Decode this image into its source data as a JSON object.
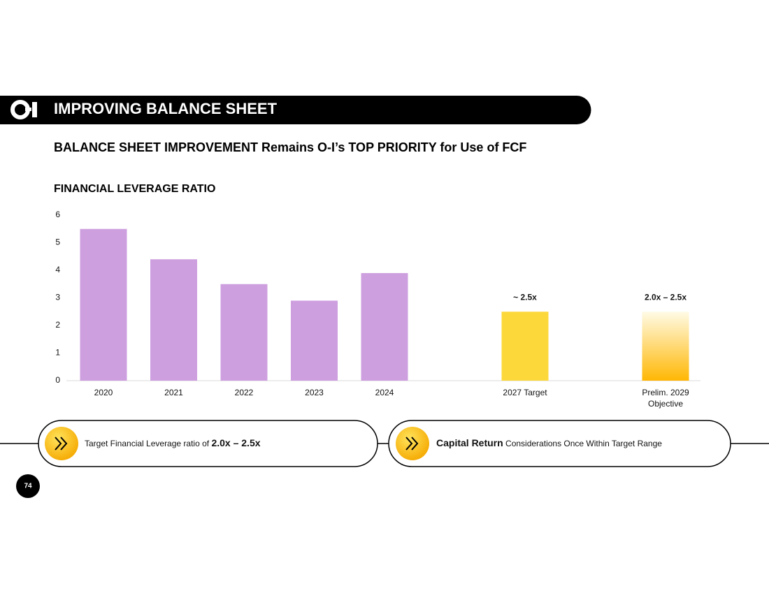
{
  "header": {
    "title": "IMPROVING BALANCE SHEET"
  },
  "subtitle": "BALANCE SHEET IMPROVEMENT Remains O-I’s TOP PRIORITY for Use of FCF",
  "chart_data": {
    "type": "bar",
    "title": "FINANCIAL LEVERAGE RATIO",
    "categories": [
      "2020",
      "2021",
      "2022",
      "2023",
      "2024",
      "2027 Target",
      "Prelim. 2029\nObjective"
    ],
    "values": [
      5.5,
      4.4,
      3.5,
      2.9,
      3.9,
      2.5,
      2.5
    ],
    "value_labels": [
      null,
      null,
      null,
      null,
      null,
      "~ 2.5x",
      "2.0x – 2.5x"
    ],
    "colors": [
      "#ce9fdf",
      "#ce9fdf",
      "#ce9fdf",
      "#ce9fdf",
      "#ce9fdf",
      "#fdd83b",
      "#ffb703"
    ],
    "ylim": [
      0,
      6
    ],
    "yticks": [
      0,
      1,
      2,
      3,
      4,
      5,
      6
    ],
    "grid": false
  },
  "callouts": [
    {
      "text": "Target Financial Leverage ratio of",
      "highlight": "2.0x – 2.5x"
    },
    {
      "highlight": "Capital Return",
      "text": "Considerations Once Within Target Range"
    }
  ],
  "page_number": "74"
}
